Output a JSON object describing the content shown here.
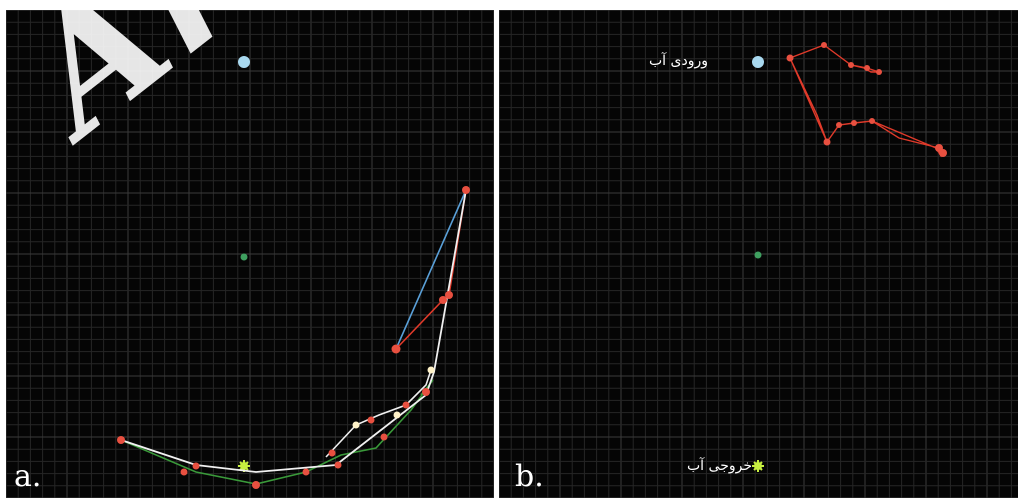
{
  "panel_a": {
    "letter": "a.",
    "watermark": "Arc",
    "marker_colors": {
      "inlet": "#a8d8ef",
      "center": "#3fa060",
      "outlet": "#c8f040"
    }
  },
  "panel_b": {
    "letter": "b.",
    "inlet_label": "ورودی آب",
    "outlet_label": "خروجی آب",
    "marker_colors": {
      "inlet": "#a8d8ef",
      "center": "#3fa060",
      "outlet": "#c8f040"
    }
  },
  "colors": {
    "background": "#050505",
    "grid_minor": "#262626",
    "grid_major": "#3a3a3a",
    "divider": "#ffffff",
    "path_white": "#f0f0f0",
    "path_red": "#e03a2a",
    "path_blue": "#5aa0d8",
    "path_green": "#3a9a3a",
    "point_red": "#e85040",
    "point_white": "#fff2c8"
  }
}
